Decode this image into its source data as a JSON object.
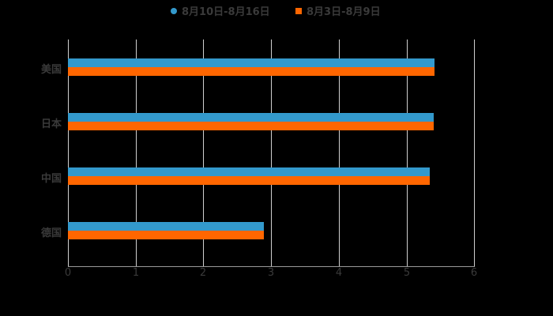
{
  "chart_data": {
    "type": "bar",
    "orientation": "horizontal",
    "title": "",
    "xlabel": "",
    "ylabel": "",
    "categories": [
      "美国",
      "日本",
      "中国",
      "德国"
    ],
    "series": [
      {
        "name": "8月10日-8月16日",
        "color": "#3399cc",
        "values": [
          5.41,
          5.4,
          5.34,
          2.89
        ]
      },
      {
        "name": "8月3日-8月9日",
        "color": "#ff6600",
        "values": [
          5.41,
          5.4,
          5.34,
          2.89
        ]
      }
    ],
    "xlim": [
      0,
      6
    ],
    "xticks": [
      "0",
      "1",
      "2",
      "3",
      "4",
      "5",
      "6"
    ],
    "grid": true,
    "legend_position": "top"
  },
  "legend": {
    "items": [
      {
        "label": "8月10日-8月16日",
        "color": "#3399cc",
        "shape": "circle"
      },
      {
        "label": "8月3日-8月9日",
        "color": "#ff6600",
        "shape": "square"
      }
    ]
  }
}
